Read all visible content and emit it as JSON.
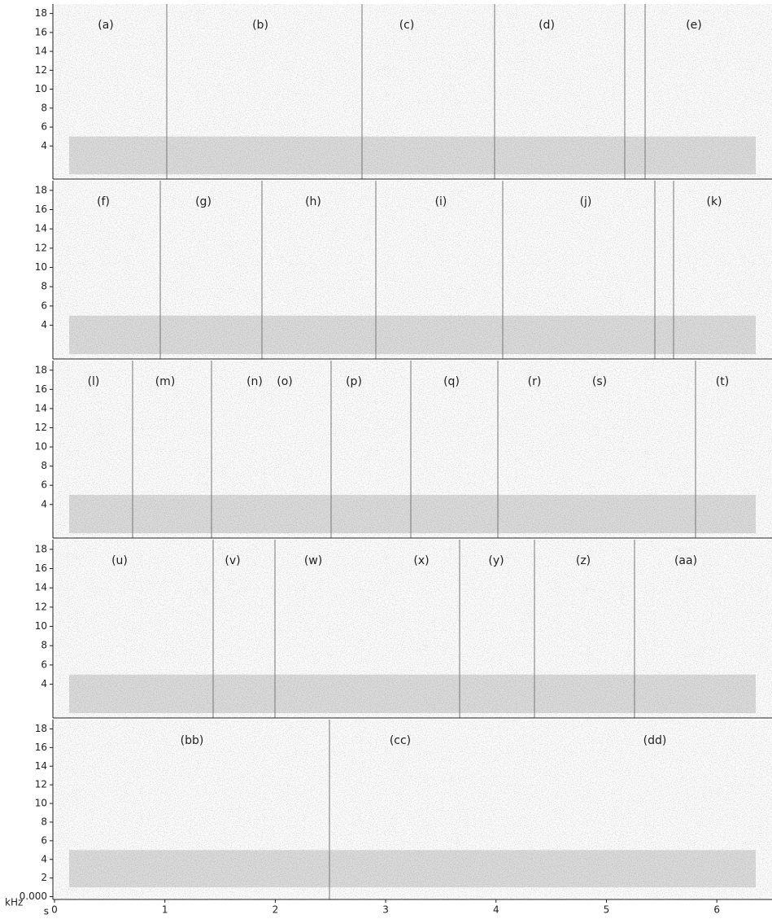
{
  "chart_data": [
    {
      "type": "spectrogram",
      "annotations": [
        "(a)",
        "(b)",
        "(c)",
        "(d)",
        "(e)"
      ],
      "ylim": [
        0.5,
        19
      ],
      "yticks": [
        4,
        6,
        8,
        10,
        12,
        14,
        16,
        18
      ]
    },
    {
      "type": "spectrogram",
      "annotations": [
        "(f)",
        "(g)",
        "(h)",
        "(i)",
        "(j)",
        "(k)"
      ],
      "ylim": [
        0.5,
        19
      ],
      "yticks": [
        4,
        6,
        8,
        10,
        12,
        14,
        16,
        18
      ]
    },
    {
      "type": "spectrogram",
      "annotations": [
        "(l)",
        "(m)",
        "(n)",
        "(o)",
        "(p)",
        "(q)",
        "(r)",
        "(s)",
        "(t)"
      ],
      "ylim": [
        0.5,
        19
      ],
      "yticks": [
        4,
        6,
        8,
        10,
        12,
        14,
        16,
        18
      ]
    },
    {
      "type": "spectrogram",
      "annotations": [
        "(u)",
        "(v)",
        "(w)",
        "(x)",
        "(y)",
        "(z)",
        "(aa)"
      ],
      "ylim": [
        0.5,
        19
      ],
      "yticks": [
        4,
        6,
        8,
        10,
        12,
        14,
        16,
        18
      ]
    },
    {
      "type": "spectrogram",
      "annotations": [
        "(bb)",
        "(cc)",
        "(dd)"
      ],
      "ylim": [
        -0.3,
        19
      ],
      "yticks": [
        {
          "value": 0,
          "label": "0.000"
        },
        2,
        4,
        6,
        8,
        10,
        12,
        14,
        16,
        18
      ],
      "xlim": [
        0,
        6.5
      ],
      "xticks": [
        0,
        1,
        2,
        3,
        4,
        5,
        6
      ],
      "xlabel": "s",
      "ylabel": "kHz"
    }
  ]
}
